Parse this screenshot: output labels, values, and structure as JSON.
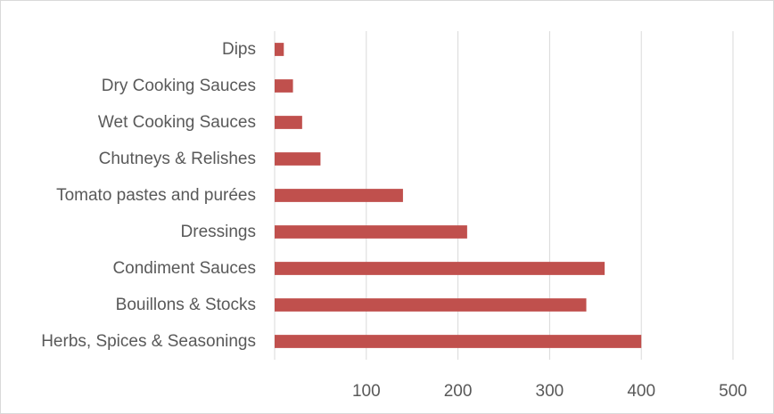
{
  "chart_data": {
    "type": "bar",
    "orientation": "horizontal",
    "title": "",
    "xlabel": "",
    "ylabel": "",
    "categories": [
      "Dips",
      "Dry Cooking Sauces",
      "Wet Cooking Sauces",
      "Chutneys & Relishes",
      "Tomato pastes and purées",
      "Dressings",
      "Condiment Sauces",
      "Bouillons & Stocks",
      "Herbs, Spices & Seasonings"
    ],
    "values": [
      10,
      20,
      30,
      50,
      140,
      210,
      360,
      340,
      400
    ],
    "xlim": [
      0,
      500
    ],
    "x_ticks": [
      100,
      200,
      300,
      400,
      500
    ],
    "grid": true,
    "legend": "none",
    "bar_color": "#c0504d"
  }
}
